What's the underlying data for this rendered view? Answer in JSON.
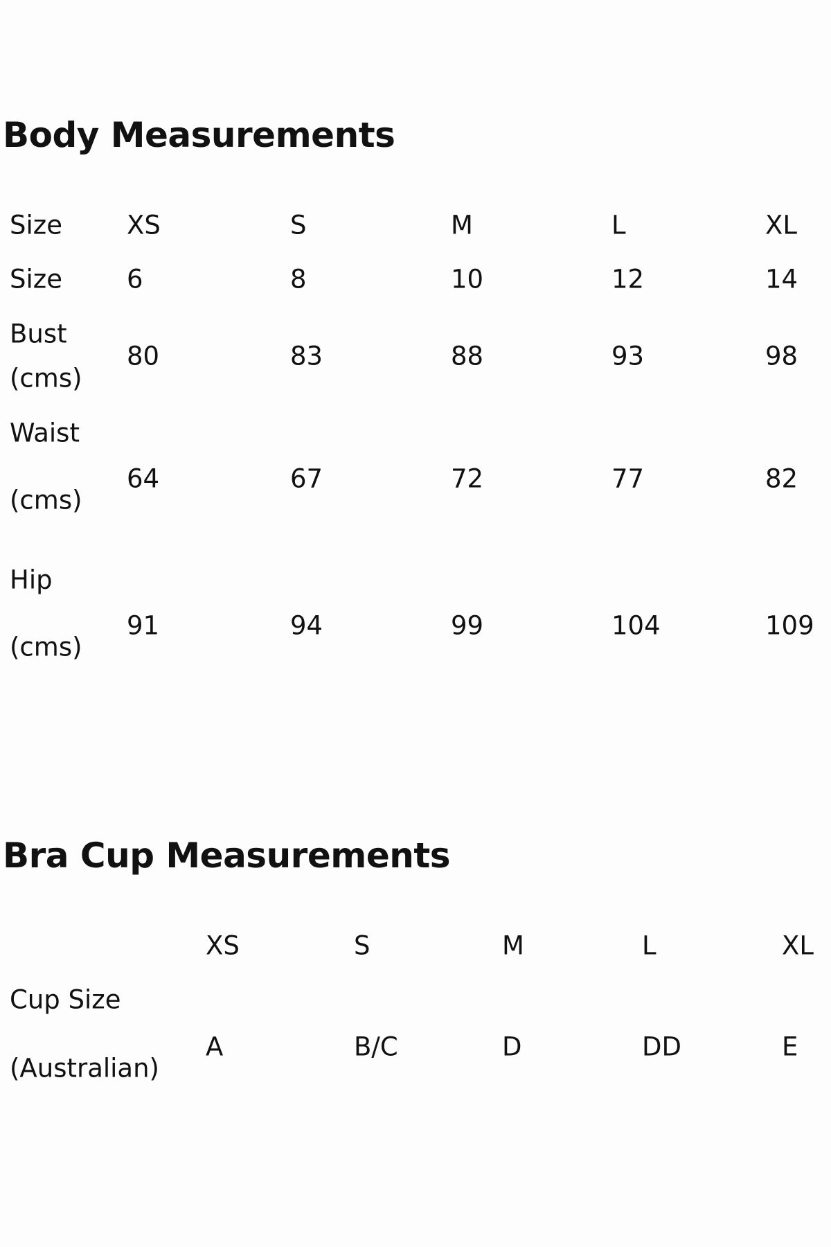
{
  "body": {
    "title": "Body Measurements",
    "rows": [
      {
        "label": [
          "Size"
        ],
        "values": [
          "XS",
          "S",
          "M",
          "L",
          "XL"
        ]
      },
      {
        "label": [
          "Size"
        ],
        "values": [
          "6",
          "8",
          "10",
          "12",
          "14"
        ]
      },
      {
        "label": [
          "Bust",
          "(cms)"
        ],
        "values": [
          "80",
          "83",
          "88",
          "93",
          "98"
        ]
      },
      {
        "label": [
          "Waist",
          "(cms)"
        ],
        "values": [
          "64",
          "67",
          "72",
          "77",
          "82"
        ]
      },
      {
        "label": [
          "Hip",
          "(cms)"
        ],
        "values": [
          "91",
          "94",
          "99",
          "104",
          "109"
        ]
      }
    ]
  },
  "bra": {
    "title": "Bra Cup Measurements",
    "headers": [
      "XS",
      "S",
      "M",
      "L",
      "XL"
    ],
    "row": {
      "label": [
        "Cup Size",
        "(Australian)"
      ],
      "values": [
        "A",
        "B/C",
        "D",
        "DD",
        "E"
      ]
    }
  }
}
